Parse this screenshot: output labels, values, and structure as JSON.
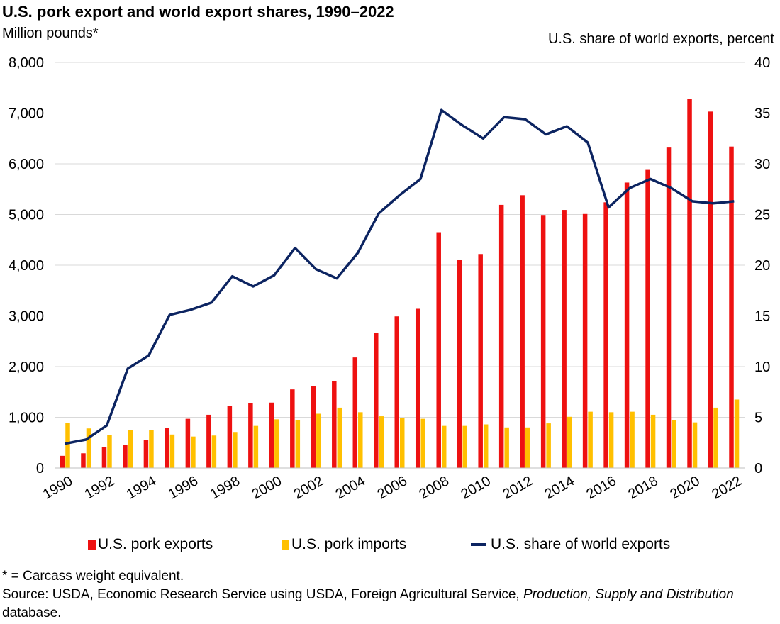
{
  "chart_data": {
    "type": "bar+line",
    "title": "U.S. pork export and world export shares, 1990–2022",
    "ylabel_left": "Million pounds*",
    "ylabel_right": "U.S. share of world exports, percent",
    "ylim_left": [
      0,
      8000
    ],
    "ylim_right": [
      0,
      40
    ],
    "yticks_left": [
      "0",
      "1,000",
      "2,000",
      "3,000",
      "4,000",
      "5,000",
      "6,000",
      "7,000",
      "8,000"
    ],
    "yticks_right": [
      "0",
      "5",
      "10",
      "15",
      "20",
      "25",
      "30",
      "35",
      "40"
    ],
    "x": [
      1990,
      1991,
      1992,
      1993,
      1994,
      1995,
      1996,
      1997,
      1998,
      1999,
      2000,
      2001,
      2002,
      2003,
      2004,
      2005,
      2006,
      2007,
      2008,
      2009,
      2010,
      2011,
      2012,
      2013,
      2014,
      2015,
      2016,
      2017,
      2018,
      2019,
      2020,
      2021,
      2022
    ],
    "xtick_labels": [
      "1990",
      "1992",
      "1994",
      "1996",
      "1998",
      "2000",
      "2002",
      "2004",
      "2006",
      "2008",
      "2010",
      "2012",
      "2014",
      "2016",
      "2018",
      "2020",
      "2022"
    ],
    "series": [
      {
        "name": "U.S. pork exports",
        "type": "bar",
        "axis": "left",
        "color": "#ee1111",
        "values": [
          240,
          290,
          410,
          450,
          550,
          790,
          970,
          1050,
          1230,
          1280,
          1290,
          1550,
          1610,
          1720,
          2180,
          2660,
          2990,
          3140,
          4650,
          4100,
          4220,
          5190,
          5380,
          4990,
          5090,
          5010,
          5240,
          5630,
          5880,
          6320,
          7280,
          7030,
          6340
        ]
      },
      {
        "name": "U.S. pork imports",
        "type": "bar",
        "axis": "left",
        "color": "#ffc000",
        "values": [
          890,
          780,
          650,
          750,
          750,
          660,
          620,
          640,
          710,
          830,
          960,
          950,
          1070,
          1190,
          1100,
          1020,
          990,
          970,
          830,
          830,
          860,
          800,
          800,
          880,
          1010,
          1110,
          1100,
          1110,
          1050,
          950,
          900,
          1190,
          1350
        ]
      },
      {
        "name": "U.S. share of world exports",
        "type": "line",
        "axis": "right",
        "color": "#0c2461",
        "values": [
          2.4,
          2.8,
          4.2,
          9.8,
          11.1,
          15.1,
          15.6,
          16.3,
          18.9,
          17.9,
          19.0,
          21.7,
          19.6,
          18.7,
          21.2,
          25.1,
          26.9,
          28.5,
          35.3,
          33.8,
          32.5,
          34.6,
          34.4,
          32.9,
          33.7,
          32.1,
          25.7,
          27.6,
          28.5,
          27.6,
          26.3,
          26.1,
          26.3
        ]
      }
    ]
  },
  "legend": {
    "exports": "U.S. pork exports",
    "imports": "U.S. pork imports",
    "share": "U.S. share of world exports"
  },
  "footer": {
    "note": "* = Carcass weight equivalent.",
    "source_prefix": "Source: USDA, Economic Research Service using USDA, Foreign Agricultural Service, ",
    "source_italic": "Production, Supply and Distribution",
    "source_suffix": " database."
  },
  "colors": {
    "exports": "#ee1111",
    "imports": "#ffc000",
    "share": "#0c2461",
    "grid": "#d9d9d9"
  }
}
